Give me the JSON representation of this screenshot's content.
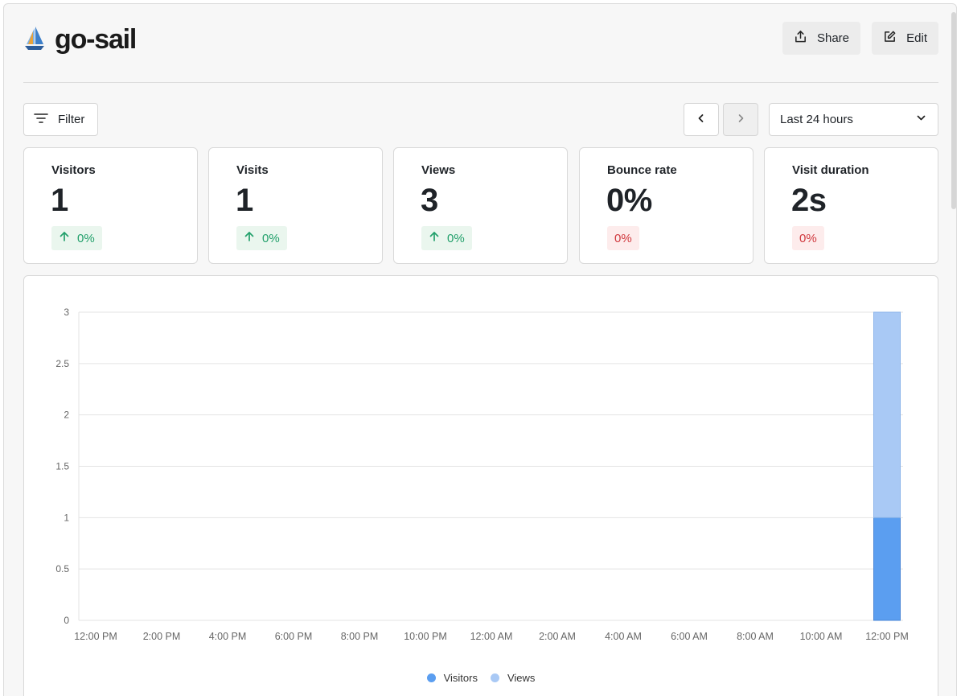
{
  "site": {
    "title": "go-sail",
    "logo_icon": "sailboat-icon"
  },
  "header": {
    "share_label": "Share",
    "edit_label": "Edit"
  },
  "controls": {
    "filter_label": "Filter",
    "range_label": "Last 24 hours"
  },
  "stats": [
    {
      "label": "Visitors",
      "value": "1",
      "change": "0%",
      "trend": "up"
    },
    {
      "label": "Visits",
      "value": "1",
      "change": "0%",
      "trend": "up"
    },
    {
      "label": "Views",
      "value": "3",
      "change": "0%",
      "trend": "up"
    },
    {
      "label": "Bounce rate",
      "value": "0%",
      "change": "0%",
      "trend": "neutral"
    },
    {
      "label": "Visit duration",
      "value": "2s",
      "change": "0%",
      "trend": "neutral"
    }
  ],
  "colors": {
    "visitors": "#5b9ef0",
    "views": "#a9c9f5",
    "trend_up": "#22a06b",
    "trend_neutral": "#d0383d"
  },
  "chart_data": {
    "type": "bar",
    "stacked": true,
    "categories": [
      "12:00 PM",
      "2:00 PM",
      "4:00 PM",
      "6:00 PM",
      "8:00 PM",
      "10:00 PM",
      "12:00 AM",
      "2:00 AM",
      "4:00 AM",
      "6:00 AM",
      "8:00 AM",
      "10:00 AM",
      "12:00 PM"
    ],
    "series": [
      {
        "name": "Visitors",
        "values": [
          0,
          0,
          0,
          0,
          0,
          0,
          0,
          0,
          0,
          0,
          0,
          0,
          1
        ]
      },
      {
        "name": "Views",
        "values": [
          0,
          0,
          0,
          0,
          0,
          0,
          0,
          0,
          0,
          0,
          0,
          0,
          2
        ]
      }
    ],
    "y_ticks": [
      "0",
      "0.5",
      "1",
      "1.5",
      "2",
      "2.5",
      "3"
    ],
    "ylim": [
      0,
      3
    ],
    "grid": true,
    "legend_position": "bottom-center"
  }
}
